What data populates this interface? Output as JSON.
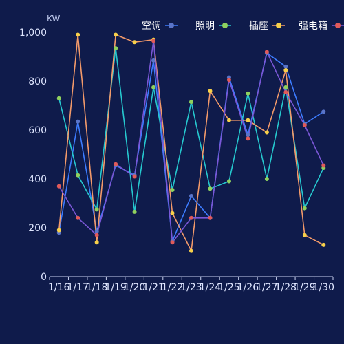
{
  "chart_data": {
    "type": "line",
    "unit_label": "KW",
    "ylim": [
      0,
      1000
    ],
    "y_ticks": [
      0,
      200,
      400,
      600,
      800,
      1000
    ],
    "y_tick_labels": [
      "0",
      "200",
      "400",
      "600",
      "800",
      "1,000"
    ],
    "categories": [
      "1/16",
      "1/17",
      "1/18",
      "1/19",
      "1/20",
      "1/21",
      "1/22",
      "1/23",
      "1/24",
      "1/25",
      "1/26",
      "1/27",
      "1/28",
      "1/29",
      "1/30"
    ],
    "category_labels": [
      "1/16",
      "1/17",
      "1/18",
      "1/19",
      "1/20",
      "1/21",
      "1/22",
      "1/23",
      "1/24",
      "1/25",
      "1/26",
      "1/27",
      "1/28",
      "1/29",
      "1/30"
    ],
    "grid": false,
    "legend_position": "top-right",
    "series": [
      {
        "name": "空调",
        "line_color": "#3d7cff",
        "marker_color": "#5a74c8",
        "values": [
          180,
          635,
          185,
          455,
          415,
          885,
          145,
          330,
          240,
          815,
          580,
          915,
          860,
          625,
          675
        ]
      },
      {
        "name": "照明",
        "line_color": "#26c9cf",
        "marker_color": "#8fd15e",
        "values": [
          730,
          415,
          275,
          935,
          265,
          775,
          355,
          715,
          360,
          390,
          750,
          400,
          775,
          280,
          445
        ]
      },
      {
        "name": "插座",
        "line_color": "#f39a6a",
        "marker_color": "#f7d04a",
        "values": [
          190,
          990,
          140,
          990,
          960,
          970,
          260,
          105,
          760,
          640,
          640,
          590,
          845,
          170,
          130
        ]
      },
      {
        "name": "强电箱",
        "line_color": "#7a57d6",
        "marker_color": "#e05a5a",
        "values": [
          370,
          240,
          170,
          460,
          410,
          965,
          140,
          240,
          240,
          805,
          565,
          920,
          755,
          620,
          455
        ]
      }
    ]
  }
}
